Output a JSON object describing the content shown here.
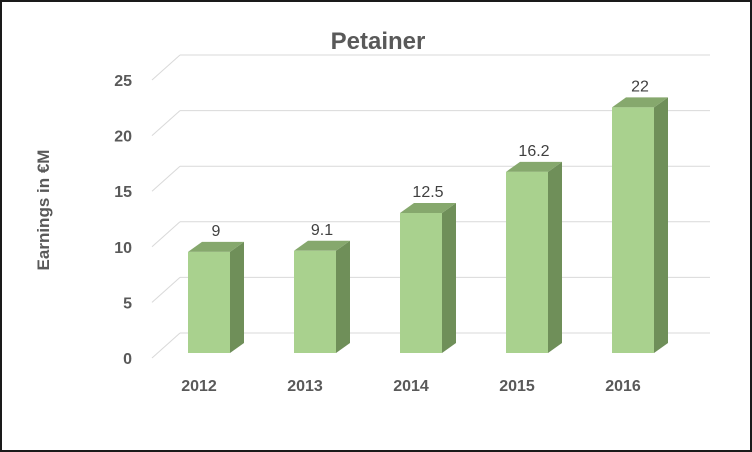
{
  "chart_data": {
    "type": "bar",
    "title": "Petainer",
    "xlabel": "",
    "ylabel": "Earnings in €M",
    "categories": [
      "2012",
      "2013",
      "2014",
      "2015",
      "2016"
    ],
    "values": [
      9,
      9.1,
      12.5,
      16.2,
      22
    ],
    "value_labels": [
      "9",
      "9.1",
      "12.5",
      "16.2",
      "22"
    ],
    "y_ticks": [
      "0",
      "5",
      "10",
      "15",
      "20",
      "25"
    ],
    "ylim": [
      0,
      25
    ],
    "grid": true,
    "legend": "none",
    "style": "3d-column",
    "colors": {
      "bar_front": "#a9d18e",
      "bar_side": "#6f8f59",
      "bar_top": "#86a86d",
      "grid": "#d9d9d9"
    }
  }
}
